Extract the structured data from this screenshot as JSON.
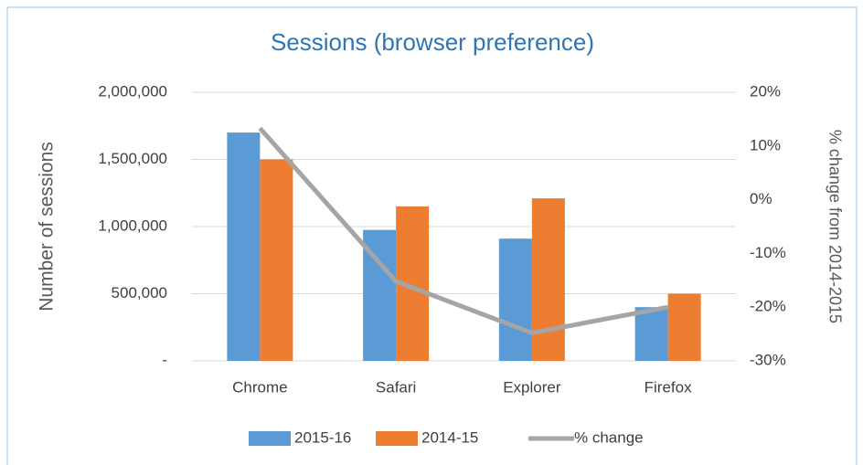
{
  "chart_data": {
    "type": "bar",
    "title": "Sessions (browser preference)",
    "y_label": "Number of sessions",
    "y2_label": "% change from 2014-2015",
    "categories": [
      "Chrome",
      "Safari",
      "Explorer",
      "Firefox"
    ],
    "series": [
      {
        "name": "2015-16",
        "color": "#5b9bd5",
        "type": "bar",
        "values": [
          1700000,
          975000,
          910000,
          400000
        ]
      },
      {
        "name": "2014-15",
        "color": "#ed7d31",
        "type": "bar",
        "values": [
          1500000,
          1150000,
          1210000,
          500000
        ]
      },
      {
        "name": "% change",
        "color": "#a5a5a5",
        "type": "line",
        "axis": "y2",
        "values": [
          13.3,
          -15.2,
          -24.8,
          -20
        ]
      }
    ],
    "ylim": [
      0,
      2000000
    ],
    "yticks": [
      {
        "value": 0,
        "label": "-"
      },
      {
        "value": 500000,
        "label": "500,000"
      },
      {
        "value": 1000000,
        "label": "1,000,000"
      },
      {
        "value": 1500000,
        "label": "1,500,000"
      },
      {
        "value": 2000000,
        "label": "2,000,000"
      }
    ],
    "y2lim": [
      -30,
      20
    ],
    "y2ticks": [
      {
        "value": -30,
        "label": "-30%"
      },
      {
        "value": -20,
        "label": "-20%"
      },
      {
        "value": -10,
        "label": "-10%"
      },
      {
        "value": 0,
        "label": "0%"
      },
      {
        "value": 10,
        "label": "10%"
      },
      {
        "value": 20,
        "label": "20%"
      }
    ],
    "grid": true,
    "legend": "bottom"
  }
}
